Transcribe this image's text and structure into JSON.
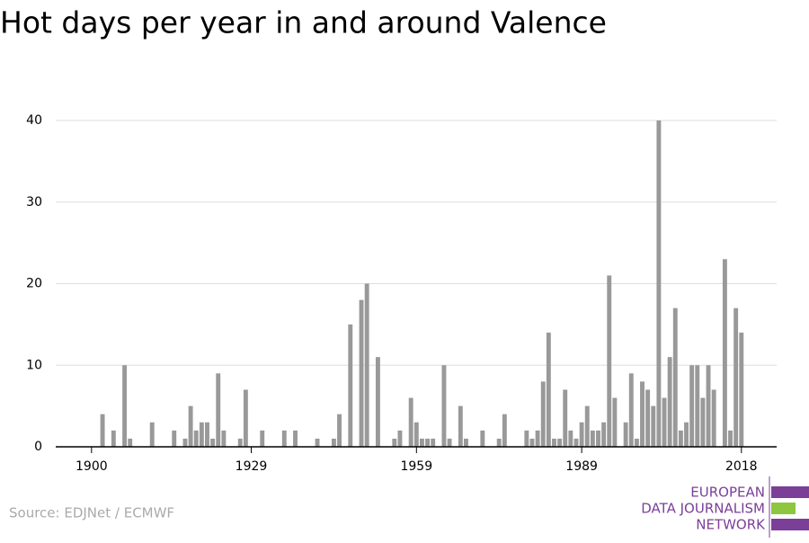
{
  "chart_data": {
    "type": "bar",
    "title": "Hot days per year in and around Valence",
    "source": "Source: EDJNet / ECMWF",
    "logo": [
      "EUROPEAN",
      "DATA JOURNALISM",
      "NETWORK"
    ],
    "color": "#999999",
    "grid": true,
    "x": [
      1900,
      1901,
      1902,
      1903,
      1904,
      1905,
      1906,
      1907,
      1908,
      1909,
      1910,
      1911,
      1912,
      1913,
      1914,
      1915,
      1916,
      1917,
      1918,
      1919,
      1920,
      1921,
      1922,
      1923,
      1924,
      1925,
      1926,
      1927,
      1928,
      1929,
      1930,
      1931,
      1932,
      1933,
      1934,
      1935,
      1936,
      1937,
      1938,
      1939,
      1940,
      1941,
      1942,
      1943,
      1944,
      1945,
      1946,
      1947,
      1948,
      1949,
      1950,
      1951,
      1952,
      1953,
      1954,
      1955,
      1956,
      1957,
      1958,
      1959,
      1960,
      1961,
      1962,
      1963,
      1964,
      1965,
      1966,
      1967,
      1968,
      1969,
      1970,
      1971,
      1972,
      1973,
      1974,
      1975,
      1976,
      1977,
      1978,
      1979,
      1980,
      1981,
      1982,
      1983,
      1984,
      1985,
      1986,
      1987,
      1988,
      1989,
      1990,
      1991,
      1992,
      1993,
      1994,
      1995,
      1996,
      1997,
      1998,
      1999,
      2000,
      2001,
      2002,
      2003,
      2004,
      2005,
      2006,
      2007,
      2008,
      2009,
      2010,
      2011,
      2012,
      2013,
      2014,
      2015,
      2016,
      2017,
      2018
    ],
    "values": [
      0,
      0,
      4,
      0,
      2,
      0,
      10,
      1,
      0,
      0,
      0,
      3,
      0,
      0,
      0,
      2,
      0,
      1,
      5,
      2,
      3,
      3,
      1,
      9,
      2,
      0,
      0,
      1,
      7,
      0,
      0,
      2,
      0,
      0,
      0,
      2,
      0,
      2,
      0,
      0,
      0,
      1,
      0,
      0,
      1,
      4,
      0,
      15,
      0,
      18,
      20,
      0,
      11,
      0,
      0,
      1,
      2,
      0,
      6,
      3,
      1,
      1,
      1,
      0,
      10,
      1,
      0,
      5,
      1,
      0,
      0,
      2,
      0,
      0,
      1,
      4,
      0,
      0,
      0,
      2,
      1,
      2,
      8,
      14,
      1,
      1,
      7,
      2,
      1,
      3,
      5,
      2,
      2,
      3,
      21,
      6,
      0,
      3,
      9,
      1,
      8,
      7,
      5,
      40,
      6,
      11,
      17,
      2,
      3,
      10,
      10,
      6,
      10,
      7,
      0,
      23,
      2,
      17,
      14
    ],
    "xlim": [
      1893.5,
      2024.4
    ],
    "xticks": [
      1900,
      1929,
      1959,
      1989,
      2018
    ],
    "ylim": [
      0,
      40
    ],
    "yticks": [
      0,
      10,
      20,
      30,
      40
    ]
  }
}
